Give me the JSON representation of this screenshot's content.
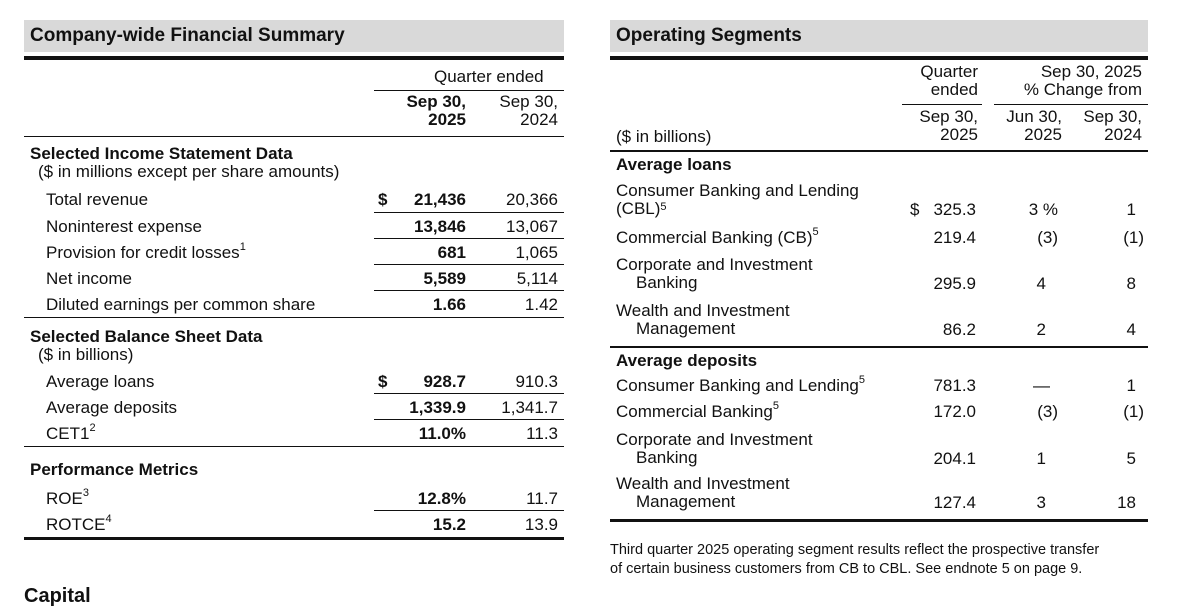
{
  "summary": {
    "title": "Company-wide Financial Summary",
    "header_quarter": "Quarter ended",
    "col_current_line1": "Sep 30,",
    "col_current_line2": "2025",
    "col_prior_line1": "Sep 30,",
    "col_prior_line2": "2024",
    "income": {
      "title": "Selected Income Statement Data",
      "subtitle": "($ in millions except per share amounts)",
      "rows": [
        {
          "label": "Total revenue",
          "sup": "",
          "prefix": "$",
          "current": "21,436",
          "prior": "20,366"
        },
        {
          "label": "Noninterest expense",
          "sup": "",
          "prefix": "",
          "current": "13,846",
          "prior": "13,067"
        },
        {
          "label": "Provision for credit losses",
          "sup": "1",
          "prefix": "",
          "current": "681",
          "prior": "1,065"
        },
        {
          "label": "Net income",
          "sup": "",
          "prefix": "",
          "current": "5,589",
          "prior": "5,114"
        },
        {
          "label": "Diluted earnings per common share",
          "sup": "",
          "prefix": "",
          "current": "1.66",
          "prior": "1.42"
        }
      ]
    },
    "balance": {
      "title": "Selected Balance Sheet Data",
      "subtitle": "($ in billions)",
      "rows": [
        {
          "label": "Average loans",
          "sup": "",
          "prefix": "$",
          "current": "928.7",
          "prior": "910.3"
        },
        {
          "label": "Average deposits",
          "sup": "",
          "prefix": "",
          "current": "1,339.9",
          "prior": "1,341.7"
        },
        {
          "label": "CET1",
          "sup": "2",
          "prefix": "",
          "current": "11.0%",
          "prior": "11.3"
        }
      ]
    },
    "performance": {
      "title": "Performance Metrics",
      "rows": [
        {
          "label": "ROE",
          "sup": "3",
          "prefix": "",
          "current": "12.8%",
          "prior": "11.7"
        },
        {
          "label": "ROTCE",
          "sup": "4",
          "prefix": "",
          "current": "15.2",
          "prior": "13.9"
        }
      ]
    }
  },
  "segments": {
    "title": "Operating Segments",
    "units": "($ in billions)",
    "hdr_quarter_line1": "Quarter",
    "hdr_quarter_line2": "ended",
    "hdr_change_line1": "Sep 30, 2025",
    "hdr_change_line2": "% Change from",
    "col_q_line1": "Sep 30,",
    "col_q_line2": "2025",
    "col_jun_line1": "Jun 30,",
    "col_jun_line2": "2025",
    "col_sep_line1": "Sep 30,",
    "col_sep_line2": "2024",
    "loans": {
      "title": "Average loans",
      "rows": [
        {
          "line1": "Consumer Banking and Lending",
          "line2": "(CBL)",
          "sup": "5",
          "prefix": "$",
          "value": "325.3",
          "jun": "3 %",
          "sep": "1"
        },
        {
          "line1": "Commercial Banking (CB)",
          "line2": "",
          "sup": "5",
          "prefix": "",
          "value": "219.4",
          "jun": "(3)",
          "sep": "(1)"
        },
        {
          "line1": "Corporate and Investment",
          "line2": "Banking",
          "sup": "",
          "prefix": "",
          "value": "295.9",
          "jun": "4",
          "sep": "8"
        },
        {
          "line1": "Wealth and Investment",
          "line2": "Management",
          "sup": "",
          "prefix": "",
          "value": "86.2",
          "jun": "2",
          "sep": "4"
        }
      ]
    },
    "deposits": {
      "title": "Average deposits",
      "rows": [
        {
          "line1": "Consumer Banking and Lending",
          "line2": "",
          "sup": "5",
          "prefix": "",
          "value": "781.3",
          "jun": "—",
          "sep": "1"
        },
        {
          "line1": "Commercial Banking",
          "line2": "",
          "sup": "5",
          "prefix": "",
          "value": "172.0",
          "jun": "(3)",
          "sep": "(1)"
        },
        {
          "line1": "Corporate and Investment",
          "line2": "Banking",
          "sup": "",
          "prefix": "",
          "value": "204.1",
          "jun": "1",
          "sep": "5"
        },
        {
          "line1": "Wealth and Investment",
          "line2": "Management",
          "sup": "",
          "prefix": "",
          "value": "127.4",
          "jun": "3",
          "sep": "18"
        }
      ]
    },
    "footnote_line1": "Third quarter 2025 operating segment results reflect the prospective transfer",
    "footnote_line2": "of certain business customers from CB to CBL. See endnote 5 on page 9."
  },
  "cutoff_heading": "Capital"
}
